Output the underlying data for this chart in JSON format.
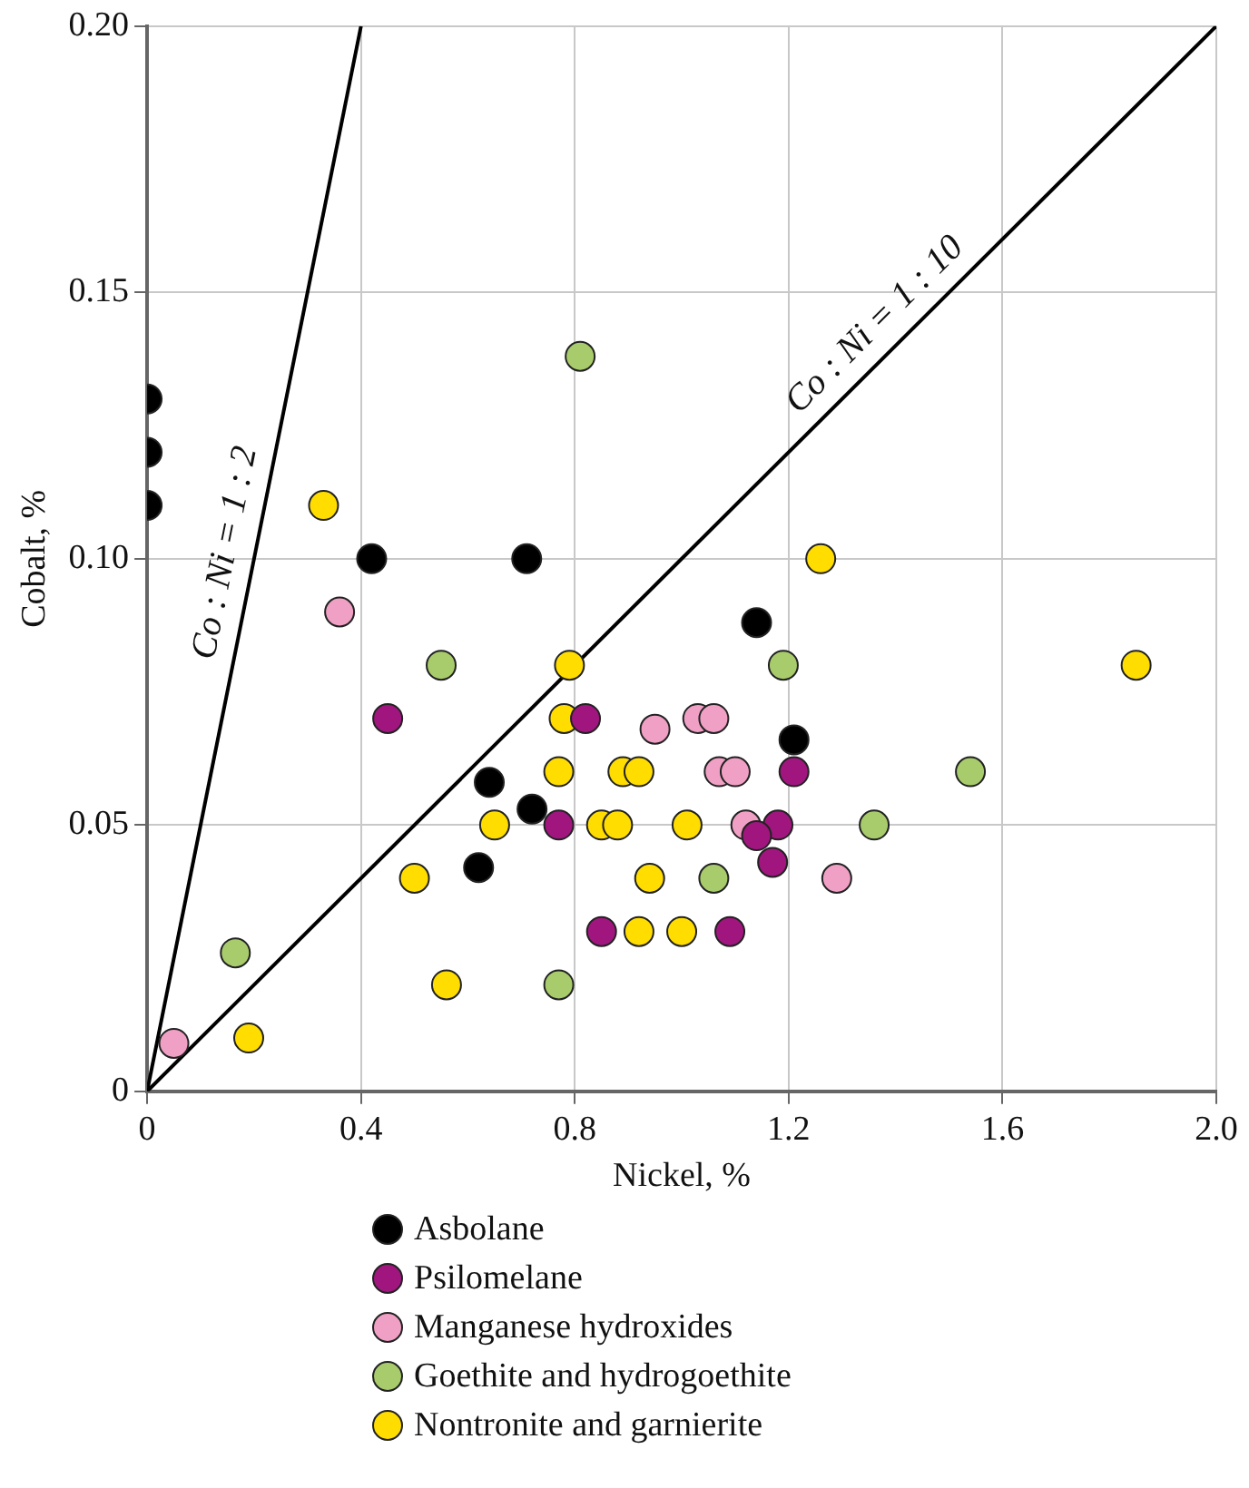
{
  "chart_data": {
    "type": "scatter",
    "xlabel": "Nickel, %",
    "ylabel": "Cobalt, %",
    "xlim": [
      0,
      2.0
    ],
    "ylim": [
      0,
      0.2
    ],
    "xticks": [
      0,
      0.4,
      0.8,
      1.2,
      1.6,
      {
        "value": 2.0,
        "label": "2.0"
      }
    ],
    "yticks": [
      0,
      0.05,
      {
        "value": 0.1,
        "label": "0.10"
      },
      0.15,
      {
        "value": 0.2,
        "label": "0.20"
      }
    ],
    "grid": true,
    "legend": "bottom",
    "marker": "circle",
    "annotations": [
      {
        "text": "Co : Ni = 1 : 2",
        "x": 0.2,
        "y": 0.1
      },
      {
        "text": "Co : Ni = 1 : 10",
        "x": 1.4,
        "y": 0.14
      }
    ],
    "series": [
      {
        "name": "Asbolane",
        "color": "#000000",
        "x": [
          0,
          0,
          0,
          0.42,
          0.71,
          1.14,
          1.21,
          0.64,
          0.72,
          0.62
        ],
        "values": [
          0.13,
          0.12,
          0.11,
          0.1,
          0.1,
          0.088,
          0.066,
          0.058,
          0.053,
          0.042
        ]
      },
      {
        "name": "Psilomelane",
        "color": "#a0167e",
        "x": [
          0.45,
          0.82,
          0.77,
          0.85,
          1.09,
          1.21,
          1.18,
          1.14,
          1.17
        ],
        "values": [
          0.07,
          0.07,
          0.05,
          0.03,
          0.03,
          0.06,
          0.05,
          0.048,
          0.043
        ]
      },
      {
        "name": "Manganese hydroxides",
        "color": "#f0a0c4",
        "x": [
          0.05,
          0.36,
          0.95,
          1.03,
          1.06,
          1.07,
          1.1,
          1.12,
          1.29
        ],
        "values": [
          0.009,
          0.09,
          0.068,
          0.07,
          0.07,
          0.06,
          0.06,
          0.05,
          0.04
        ]
      },
      {
        "name": "Goethite and hydrogoethite",
        "color": "#a8cc6c",
        "x": [
          0.81,
          0.55,
          1.19,
          0.165,
          0.77,
          1.06,
          1.36,
          1.54
        ],
        "values": [
          0.138,
          0.08,
          0.08,
          0.026,
          0.02,
          0.04,
          0.05,
          0.06
        ]
      },
      {
        "name": "Nontronite and garnierite",
        "color": "#ffdd00",
        "x": [
          0.33,
          1.26,
          1.85,
          0.79,
          0.78,
          0.77,
          0.89,
          0.92,
          0.65,
          0.85,
          0.88,
          1.01,
          0.5,
          0.94,
          0.56,
          0.19,
          0.92,
          1.0
        ],
        "values": [
          0.11,
          0.1,
          0.08,
          0.08,
          0.07,
          0.06,
          0.06,
          0.06,
          0.05,
          0.05,
          0.05,
          0.05,
          0.04,
          0.04,
          0.02,
          0.01,
          0.03,
          0.03
        ]
      },
      {
        "type": "line",
        "color": "#000000",
        "marker": "none",
        "x": [
          0,
          0.4
        ],
        "values": [
          0,
          0.2
        ]
      },
      {
        "type": "line",
        "color": "#000000",
        "marker": "none",
        "x": [
          0,
          2.0
        ],
        "values": [
          0,
          0.2
        ]
      }
    ]
  }
}
